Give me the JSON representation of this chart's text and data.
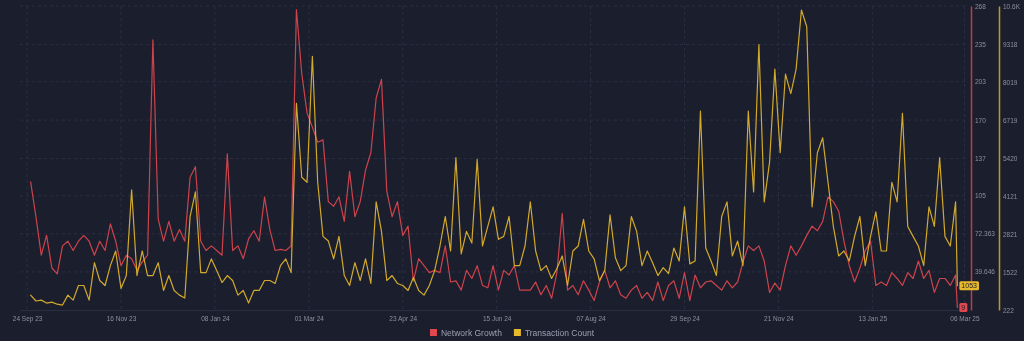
{
  "chart_data": {
    "type": "line",
    "grid": true,
    "legend": "bottom",
    "xlim": [
      "2023-09-20",
      "2025-03-08"
    ],
    "xticks": [
      {
        "value": "2023-09-24",
        "label": "24 Sep 23"
      },
      {
        "value": "2023-11-16",
        "label": "16 Nov 23"
      },
      {
        "value": "2024-01-08",
        "label": "08 Jan 24"
      },
      {
        "value": "2024-03-01",
        "label": "01 Mar 24"
      },
      {
        "value": "2024-04-23",
        "label": "23 Apr 24"
      },
      {
        "value": "2024-06-15",
        "label": "15 Jun 24"
      },
      {
        "value": "2024-08-07",
        "label": "07 Aug 24"
      },
      {
        "value": "2024-09-29",
        "label": "29 Sep 24"
      },
      {
        "value": "2024-11-21",
        "label": "21 Nov 24"
      },
      {
        "value": "2025-01-13",
        "label": "13 Jan 25"
      },
      {
        "value": "2025-03-06",
        "label": "06 Mar 25"
      }
    ],
    "ylim": [
      6.93,
      268
    ],
    "yticks": [
      39.646,
      72.363,
      105,
      137,
      170,
      203,
      235,
      268
    ],
    "y2lim": [
      222,
      10618
    ],
    "y2ticks": [
      222,
      1522,
      2821,
      4121,
      5420,
      6719,
      8019,
      9318,
      {
        "value": 10618,
        "label": "10.6K"
      }
    ],
    "x": [
      "2023-09-26",
      "2023-09-29",
      "2023-10-02",
      "2023-10-05",
      "2023-10-08",
      "2023-10-11",
      "2023-10-14",
      "2023-10-17",
      "2023-10-20",
      "2023-10-23",
      "2023-10-26",
      "2023-10-29",
      "2023-11-01",
      "2023-11-04",
      "2023-11-07",
      "2023-11-10",
      "2023-11-13",
      "2023-11-16",
      "2023-11-19",
      "2023-11-22",
      "2023-11-25",
      "2023-11-28",
      "2023-12-01",
      "2023-12-04",
      "2023-12-07",
      "2023-12-10",
      "2023-12-13",
      "2023-12-16",
      "2023-12-19",
      "2023-12-22",
      "2023-12-25",
      "2023-12-28",
      "2023-12-31",
      "2024-01-03",
      "2024-01-06",
      "2024-01-09",
      "2024-01-12",
      "2024-01-15",
      "2024-01-18",
      "2024-01-21",
      "2024-01-24",
      "2024-01-27",
      "2024-01-30",
      "2024-02-02",
      "2024-02-05",
      "2024-02-08",
      "2024-02-11",
      "2024-02-14",
      "2024-02-17",
      "2024-02-20",
      "2024-02-23",
      "2024-02-26",
      "2024-02-29",
      "2024-03-03",
      "2024-03-06",
      "2024-03-09",
      "2024-03-12",
      "2024-03-15",
      "2024-03-18",
      "2024-03-21",
      "2024-03-24",
      "2024-03-27",
      "2024-03-30",
      "2024-04-02",
      "2024-04-05",
      "2024-04-08",
      "2024-04-11",
      "2024-04-14",
      "2024-04-17",
      "2024-04-20",
      "2024-04-23",
      "2024-04-26",
      "2024-04-29",
      "2024-05-02",
      "2024-05-05",
      "2024-05-08",
      "2024-05-11",
      "2024-05-14",
      "2024-05-17",
      "2024-05-20",
      "2024-05-23",
      "2024-05-26",
      "2024-05-29",
      "2024-06-01",
      "2024-06-04",
      "2024-06-07",
      "2024-06-10",
      "2024-06-13",
      "2024-06-16",
      "2024-06-19",
      "2024-06-22",
      "2024-06-25",
      "2024-06-28",
      "2024-07-01",
      "2024-07-04",
      "2024-07-07",
      "2024-07-10",
      "2024-07-13",
      "2024-07-16",
      "2024-07-19",
      "2024-07-22",
      "2024-07-25",
      "2024-07-28",
      "2024-07-31",
      "2024-08-03",
      "2024-08-06",
      "2024-08-09",
      "2024-08-12",
      "2024-08-15",
      "2024-08-18",
      "2024-08-21",
      "2024-08-24",
      "2024-08-27",
      "2024-08-30",
      "2024-09-02",
      "2024-09-05",
      "2024-09-08",
      "2024-09-11",
      "2024-09-14",
      "2024-09-17",
      "2024-09-20",
      "2024-09-23",
      "2024-09-26",
      "2024-09-29",
      "2024-10-02",
      "2024-10-05",
      "2024-10-08",
      "2024-10-11",
      "2024-10-14",
      "2024-10-17",
      "2024-10-20",
      "2024-10-23",
      "2024-10-26",
      "2024-10-29",
      "2024-11-01",
      "2024-11-04",
      "2024-11-07",
      "2024-11-10",
      "2024-11-13",
      "2024-11-16",
      "2024-11-19",
      "2024-11-22",
      "2024-11-25",
      "2024-11-28",
      "2024-12-01",
      "2024-12-04",
      "2024-12-07",
      "2024-12-10",
      "2024-12-13",
      "2024-12-16",
      "2024-12-19",
      "2024-12-22",
      "2024-12-25",
      "2024-12-28",
      "2024-12-31",
      "2025-01-03",
      "2025-01-06",
      "2025-01-09",
      "2025-01-12",
      "2025-01-15",
      "2025-01-18",
      "2025-01-21",
      "2025-01-24",
      "2025-01-27",
      "2025-01-30",
      "2025-02-02",
      "2025-02-05",
      "2025-02-08",
      "2025-02-11",
      "2025-02-14",
      "2025-02-17",
      "2025-02-20",
      "2025-02-23",
      "2025-02-26",
      "2025-03-01",
      "2025-03-02"
    ],
    "series": [
      {
        "name": "Network Growth",
        "color": "#e0474f",
        "values": [
          117,
          87,
          54,
          71,
          43,
          38,
          62,
          66,
          58,
          66,
          71,
          66,
          54,
          66,
          58,
          81,
          66,
          45,
          54,
          51,
          41,
          48,
          54,
          239,
          85,
          66,
          83,
          66,
          76,
          66,
          121,
          130,
          66,
          58,
          62,
          58,
          54,
          141,
          58,
          62,
          51,
          68,
          75,
          66,
          104,
          76,
          58,
          59,
          58,
          62,
          265,
          210,
          176,
          164,
          151,
          153,
          100,
          96,
          104,
          83,
          126,
          87,
          100,
          127,
          142,
          189,
          205,
          109,
          87,
          100,
          71,
          79,
          32,
          51,
          45,
          39,
          41,
          39,
          62,
          31,
          32,
          24,
          41,
          34,
          45,
          28,
          26,
          45,
          24,
          41,
          37,
          45,
          24,
          24,
          24,
          31,
          20,
          28,
          17,
          39,
          90,
          24,
          28,
          20,
          32,
          24,
          15,
          31,
          41,
          26,
          32,
          20,
          17,
          24,
          28,
          17,
          22,
          15,
          31,
          15,
          28,
          32,
          17,
          39,
          15,
          37,
          26,
          31,
          32,
          28,
          24,
          32,
          26,
          31,
          48,
          62,
          58,
          62,
          49,
          22,
          30,
          24,
          45,
          62,
          54,
          62,
          71,
          79,
          75,
          83,
          104,
          100,
          92,
          66,
          45,
          31,
          43,
          58,
          66,
          28,
          31,
          28,
          39,
          34,
          28,
          39,
          34,
          49,
          34,
          41,
          22,
          34,
          34,
          28,
          37,
          9
        ],
        "value_labels": [
          null,
          null,
          null,
          null,
          null,
          null,
          null,
          null,
          null,
          null,
          null,
          null,
          null,
          null,
          null,
          null,
          null,
          null,
          null,
          null,
          null,
          null,
          null,
          null,
          null,
          null,
          null,
          null,
          null,
          null,
          null,
          null,
          null,
          null,
          null,
          null,
          null,
          null,
          null,
          null,
          null,
          null,
          null,
          null,
          null,
          null,
          null,
          null,
          null,
          null,
          null,
          null,
          null,
          null,
          null,
          null,
          null,
          null,
          null,
          null,
          null,
          null,
          null,
          null,
          null,
          null,
          null,
          null,
          null,
          null,
          null,
          null,
          null,
          null,
          null,
          null,
          null,
          null,
          null,
          null,
          null,
          null,
          null,
          null,
          null,
          null,
          null,
          null,
          null,
          null,
          null,
          null,
          null,
          null,
          null,
          null,
          null,
          null,
          null,
          null,
          null,
          null,
          null,
          null,
          null,
          null,
          null,
          null,
          null,
          null,
          null,
          null,
          null,
          null,
          null,
          null,
          null,
          null,
          null,
          null,
          null,
          null,
          null,
          null,
          null,
          null,
          null,
          null,
          null,
          null,
          null,
          null,
          null,
          null,
          null,
          null,
          null,
          null,
          null,
          null,
          null,
          null,
          null,
          null,
          null,
          null,
          null,
          null,
          null,
          null,
          null,
          null,
          null,
          null,
          null,
          null,
          null,
          null,
          null,
          null,
          null,
          null,
          null,
          null,
          null,
          null,
          null,
          null,
          null,
          null,
          null,
          null,
          null,
          null,
          null,
          "9"
        ]
      },
      {
        "name": "Transaction Count",
        "color": "#e6b82c",
        "axis": "y2",
        "values": [
          730,
          530,
          560,
          460,
          490,
          420,
          390,
          730,
          560,
          1060,
          1060,
          560,
          1840,
          1230,
          1060,
          1740,
          2240,
          960,
          1400,
          4330,
          1400,
          2240,
          1400,
          1400,
          1840,
          890,
          1400,
          890,
          730,
          630,
          3420,
          4260,
          1500,
          1500,
          1970,
          1570,
          1160,
          1400,
          1230,
          730,
          890,
          460,
          890,
          890,
          1230,
          1230,
          1130,
          1740,
          1970,
          1500,
          7290,
          4760,
          4590,
          8900,
          4590,
          2740,
          2580,
          1970,
          2740,
          1400,
          1060,
          1840,
          1230,
          1970,
          1130,
          3920,
          2910,
          1230,
          1400,
          1130,
          1060,
          890,
          1330,
          890,
          730,
          1060,
          1570,
          2410,
          3420,
          2240,
          5430,
          2140,
          2910,
          2510,
          5370,
          2410,
          3080,
          3750,
          2640,
          2740,
          3420,
          1740,
          1740,
          2410,
          3920,
          2240,
          1570,
          1740,
          1300,
          1640,
          2070,
          1060,
          2240,
          2410,
          3320,
          2240,
          1970,
          1230,
          1570,
          3480,
          2010,
          1570,
          1740,
          3420,
          2910,
          1740,
          2240,
          1840,
          1400,
          1670,
          1470,
          2340,
          1900,
          3750,
          1800,
          1900,
          7020,
          2340,
          1900,
          1400,
          3420,
          3920,
          2070,
          2580,
          1740,
          7020,
          4260,
          9300,
          3920,
          5270,
          8460,
          5600,
          8290,
          7620,
          8460,
          10480,
          9910,
          3750,
          5600,
          6110,
          4590,
          3080,
          2070,
          2240,
          1900,
          2740,
          3420,
          1740,
          2740,
          3580,
          2240,
          2240,
          4590,
          3920,
          6950,
          3080,
          2740,
          2410,
          1740,
          3750,
          3080,
          5430,
          2740,
          2410,
          3920,
          1053
        ],
        "value_labels": [
          null,
          null,
          null,
          null,
          null,
          null,
          null,
          null,
          null,
          null,
          null,
          null,
          null,
          null,
          null,
          null,
          null,
          null,
          null,
          null,
          null,
          null,
          null,
          null,
          null,
          null,
          null,
          null,
          null,
          null,
          null,
          null,
          null,
          null,
          null,
          null,
          null,
          null,
          null,
          null,
          null,
          null,
          null,
          null,
          null,
          null,
          null,
          null,
          null,
          null,
          null,
          null,
          null,
          null,
          null,
          null,
          null,
          null,
          null,
          null,
          null,
          null,
          null,
          null,
          null,
          null,
          null,
          null,
          null,
          null,
          null,
          null,
          null,
          null,
          null,
          null,
          null,
          null,
          null,
          null,
          null,
          null,
          null,
          null,
          null,
          null,
          null,
          null,
          null,
          null,
          null,
          null,
          null,
          null,
          null,
          null,
          null,
          null,
          null,
          null,
          null,
          null,
          null,
          null,
          null,
          null,
          null,
          null,
          null,
          null,
          null,
          null,
          null,
          null,
          null,
          null,
          null,
          null,
          null,
          null,
          null,
          null,
          null,
          null,
          null,
          null,
          null,
          null,
          null,
          null,
          null,
          null,
          null,
          null,
          null,
          null,
          null,
          null,
          null,
          null,
          null,
          null,
          null,
          null,
          null,
          null,
          null,
          null,
          null,
          null,
          null,
          null,
          null,
          null,
          null,
          null,
          null,
          null,
          null,
          null,
          null,
          null,
          null,
          null,
          null,
          null,
          null,
          null,
          null,
          null,
          null,
          null,
          null,
          null,
          null,
          "1053"
        ]
      }
    ]
  }
}
